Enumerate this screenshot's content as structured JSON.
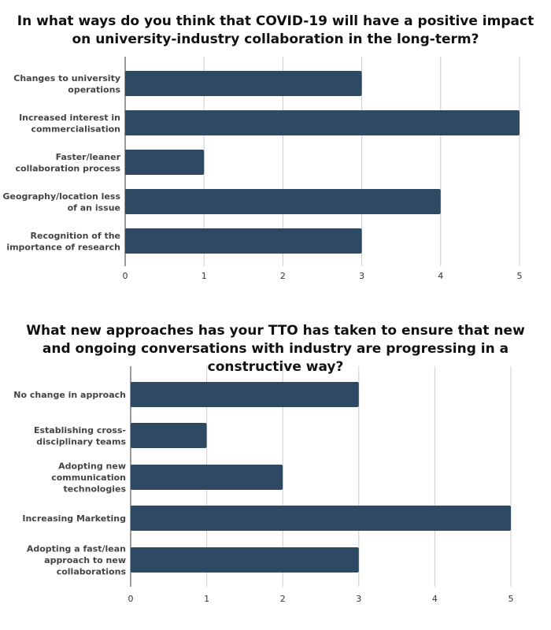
{
  "chart_data": [
    {
      "type": "bar",
      "orientation": "horizontal",
      "title": "In what ways do you think that COVID-19 will have a positive impact on university-industry collaboration in the long-term?",
      "categories": [
        "Changes to university operations",
        "Increased interest in commercialisation",
        "Faster/leaner collaboration process",
        "Geography/location less of an issue",
        "Recognition of the importance of research"
      ],
      "values": [
        3,
        5,
        1,
        4,
        3
      ],
      "xlim": [
        0,
        5
      ],
      "xticks": [
        "0",
        "1",
        "2",
        "3",
        "4",
        "5"
      ],
      "grid": true,
      "bar_color": "#2e4a63"
    },
    {
      "type": "bar",
      "orientation": "horizontal",
      "title": "What new approaches has your TTO has taken to ensure that new and ongoing conversations with industry are progressing in a constructive way?",
      "categories": [
        "No change in approach",
        "Establishing cross-disciplinary teams",
        "Adopting new communication technologies",
        "Increasing Marketing",
        "Adopting a fast/lean approach to new collaborations"
      ],
      "values": [
        3,
        1,
        2,
        5,
        3
      ],
      "xlim": [
        0,
        5
      ],
      "xticks": [
        "0",
        "1",
        "2",
        "3",
        "4",
        "5"
      ],
      "grid": true,
      "bar_color": "#2e4a63"
    }
  ]
}
